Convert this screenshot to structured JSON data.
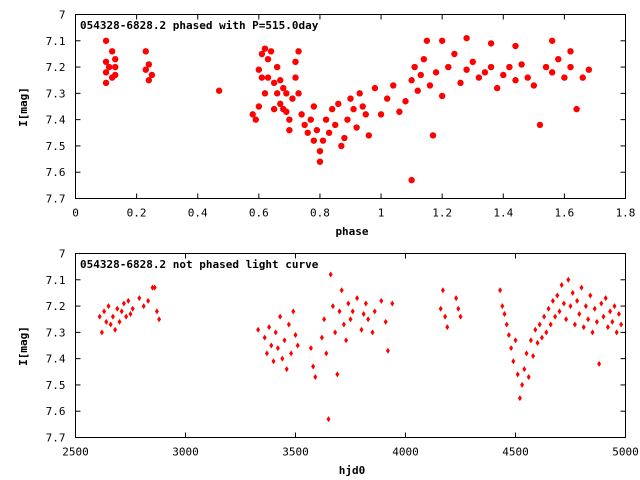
{
  "chart_data": [
    {
      "type": "scatter",
      "title": "054328-6828.2 phased with P=515.0day",
      "xlabel": "phase",
      "ylabel": "I[mag]",
      "xlim": [
        0,
        1.8
      ],
      "ylim": [
        7.7,
        7
      ],
      "x_ticks": [
        "0",
        "0.2",
        "0.4",
        "0.6",
        "0.8",
        "1",
        "1.2",
        "1.4",
        "1.6",
        "1.8"
      ],
      "y_ticks": [
        "7",
        "7.1",
        "7.2",
        "7.3",
        "7.4",
        "7.5",
        "7.6",
        "7.7"
      ],
      "marker_color": "#ff0000",
      "marker": "filled-circle-large",
      "series": [
        {
          "points": [
            [
              0.1,
              7.1
            ],
            [
              0.1,
              7.18
            ],
            [
              0.1,
              7.22
            ],
            [
              0.1,
              7.26
            ],
            [
              0.11,
              7.2
            ],
            [
              0.12,
              7.14
            ],
            [
              0.12,
              7.24
            ],
            [
              0.13,
              7.17
            ],
            [
              0.13,
              7.23
            ],
            [
              0.13,
              7.2
            ],
            [
              0.23,
              7.14
            ],
            [
              0.23,
              7.21
            ],
            [
              0.24,
              7.19
            ],
            [
              0.24,
              7.25
            ],
            [
              0.25,
              7.23
            ],
            [
              0.47,
              7.29
            ],
            [
              0.58,
              7.38
            ],
            [
              0.59,
              7.4
            ],
            [
              0.6,
              7.35
            ],
            [
              0.6,
              7.21
            ],
            [
              0.61,
              7.15
            ],
            [
              0.61,
              7.24
            ],
            [
              0.62,
              7.13
            ],
            [
              0.62,
              7.3
            ],
            [
              0.63,
              7.17
            ],
            [
              0.63,
              7.24
            ],
            [
              0.64,
              7.14
            ],
            [
              0.65,
              7.26
            ],
            [
              0.65,
              7.36
            ],
            [
              0.66,
              7.2
            ],
            [
              0.66,
              7.3
            ],
            [
              0.67,
              7.25
            ],
            [
              0.67,
              7.34
            ],
            [
              0.68,
              7.28
            ],
            [
              0.68,
              7.36
            ],
            [
              0.69,
              7.37
            ],
            [
              0.69,
              7.3
            ],
            [
              0.7,
              7.4
            ],
            [
              0.7,
              7.44
            ],
            [
              0.71,
              7.32
            ],
            [
              0.72,
              7.18
            ],
            [
              0.72,
              7.24
            ],
            [
              0.73,
              7.14
            ],
            [
              0.73,
              7.3
            ],
            [
              0.74,
              7.38
            ],
            [
              0.75,
              7.42
            ],
            [
              0.76,
              7.45
            ],
            [
              0.77,
              7.4
            ],
            [
              0.78,
              7.35
            ],
            [
              0.78,
              7.48
            ],
            [
              0.79,
              7.44
            ],
            [
              0.8,
              7.52
            ],
            [
              0.8,
              7.56
            ],
            [
              0.81,
              7.48
            ],
            [
              0.82,
              7.4
            ],
            [
              0.83,
              7.45
            ],
            [
              0.84,
              7.36
            ],
            [
              0.85,
              7.42
            ],
            [
              0.86,
              7.34
            ],
            [
              0.87,
              7.5
            ],
            [
              0.88,
              7.47
            ],
            [
              0.89,
              7.4
            ],
            [
              0.9,
              7.32
            ],
            [
              0.91,
              7.36
            ],
            [
              0.92,
              7.43
            ],
            [
              0.93,
              7.3
            ],
            [
              0.94,
              7.35
            ],
            [
              0.95,
              7.38
            ],
            [
              0.96,
              7.46
            ],
            [
              0.98,
              7.28
            ],
            [
              1.0,
              7.38
            ],
            [
              1.02,
              7.32
            ],
            [
              1.04,
              7.27
            ],
            [
              1.06,
              7.37
            ],
            [
              1.08,
              7.33
            ],
            [
              1.1,
              7.25
            ],
            [
              1.1,
              7.63
            ],
            [
              1.11,
              7.2
            ],
            [
              1.12,
              7.29
            ],
            [
              1.13,
              7.23
            ],
            [
              1.14,
              7.17
            ],
            [
              1.16,
              7.27
            ],
            [
              1.17,
              7.46
            ],
            [
              1.18,
              7.22
            ],
            [
              1.2,
              7.31
            ],
            [
              1.22,
              7.2
            ],
            [
              1.24,
              7.15
            ],
            [
              1.26,
              7.26
            ],
            [
              1.28,
              7.21
            ],
            [
              1.3,
              7.18
            ],
            [
              1.32,
              7.24
            ],
            [
              1.34,
              7.22
            ],
            [
              1.36,
              7.2
            ],
            [
              1.38,
              7.28
            ],
            [
              1.4,
              7.23
            ],
            [
              1.42,
              7.2
            ],
            [
              1.44,
              7.25
            ],
            [
              1.46,
              7.19
            ],
            [
              1.48,
              7.24
            ],
            [
              1.5,
              7.27
            ],
            [
              1.52,
              7.42
            ],
            [
              1.54,
              7.2
            ],
            [
              1.56,
              7.22
            ],
            [
              1.58,
              7.17
            ],
            [
              1.6,
              7.24
            ],
            [
              1.62,
              7.2
            ],
            [
              1.64,
              7.36
            ],
            [
              1.66,
              7.24
            ],
            [
              1.68,
              7.21
            ],
            [
              1.2,
              7.1
            ],
            [
              1.28,
              7.09
            ],
            [
              1.36,
              7.11
            ],
            [
              1.44,
              7.12
            ],
            [
              1.56,
              7.1
            ],
            [
              1.62,
              7.14
            ],
            [
              1.15,
              7.1
            ]
          ]
        }
      ]
    },
    {
      "type": "scatter",
      "title": "054328-6828.2 not phased light curve",
      "xlabel": "hjd0",
      "ylabel": "I[mag]",
      "xlim": [
        2500,
        5000
      ],
      "ylim": [
        7.7,
        7
      ],
      "x_ticks": [
        "2500",
        "3000",
        "3500",
        "4000",
        "4500",
        "5000"
      ],
      "y_ticks": [
        "7",
        "7.1",
        "7.2",
        "7.3",
        "7.4",
        "7.5",
        "7.6",
        "7.7"
      ],
      "marker_color": "#ff0000",
      "marker": "filled-diamond-small",
      "series": [
        {
          "points": [
            [
              2610,
              7.24
            ],
            [
              2620,
              7.3
            ],
            [
              2630,
              7.22
            ],
            [
              2640,
              7.26
            ],
            [
              2650,
              7.2
            ],
            [
              2660,
              7.27
            ],
            [
              2670,
              7.24
            ],
            [
              2680,
              7.29
            ],
            [
              2690,
              7.21
            ],
            [
              2700,
              7.26
            ],
            [
              2710,
              7.22
            ],
            [
              2720,
              7.19
            ],
            [
              2730,
              7.24
            ],
            [
              2740,
              7.18
            ],
            [
              2750,
              7.23
            ],
            [
              2760,
              7.21
            ],
            [
              2790,
              7.17
            ],
            [
              2810,
              7.2
            ],
            [
              2830,
              7.18
            ],
            [
              2850,
              7.13
            ],
            [
              2860,
              7.13
            ],
            [
              2870,
              7.22
            ],
            [
              2880,
              7.25
            ],
            [
              3330,
              7.29
            ],
            [
              3360,
              7.32
            ],
            [
              3370,
              7.38
            ],
            [
              3380,
              7.28
            ],
            [
              3390,
              7.35
            ],
            [
              3400,
              7.41
            ],
            [
              3410,
              7.3
            ],
            [
              3420,
              7.36
            ],
            [
              3430,
              7.24
            ],
            [
              3440,
              7.4
            ],
            [
              3450,
              7.33
            ],
            [
              3460,
              7.44
            ],
            [
              3470,
              7.27
            ],
            [
              3480,
              7.38
            ],
            [
              3490,
              7.22
            ],
            [
              3500,
              7.31
            ],
            [
              3510,
              7.35
            ],
            [
              3570,
              7.36
            ],
            [
              3580,
              7.43
            ],
            [
              3590,
              7.47
            ],
            [
              3620,
              7.32
            ],
            [
              3630,
              7.25
            ],
            [
              3640,
              7.38
            ],
            [
              3650,
              7.63
            ],
            [
              3660,
              7.08
            ],
            [
              3670,
              7.2
            ],
            [
              3680,
              7.3
            ],
            [
              3690,
              7.46
            ],
            [
              3700,
              7.22
            ],
            [
              3710,
              7.14
            ],
            [
              3720,
              7.27
            ],
            [
              3730,
              7.33
            ],
            [
              3740,
              7.19
            ],
            [
              3750,
              7.25
            ],
            [
              3760,
              7.22
            ],
            [
              3780,
              7.17
            ],
            [
              3800,
              7.29
            ],
            [
              3810,
              7.23
            ],
            [
              3820,
              7.19
            ],
            [
              3830,
              7.25
            ],
            [
              3850,
              7.3
            ],
            [
              3860,
              7.22
            ],
            [
              3890,
              7.18
            ],
            [
              3910,
              7.26
            ],
            [
              3920,
              7.37
            ],
            [
              3940,
              7.19
            ],
            [
              4160,
              7.21
            ],
            [
              4170,
              7.14
            ],
            [
              4180,
              7.24
            ],
            [
              4190,
              7.28
            ],
            [
              4230,
              7.17
            ],
            [
              4240,
              7.21
            ],
            [
              4250,
              7.24
            ],
            [
              4430,
              7.14
            ],
            [
              4440,
              7.2
            ],
            [
              4450,
              7.23
            ],
            [
              4460,
              7.27
            ],
            [
              4470,
              7.31
            ],
            [
              4480,
              7.36
            ],
            [
              4490,
              7.41
            ],
            [
              4500,
              7.33
            ],
            [
              4510,
              7.46
            ],
            [
              4520,
              7.55
            ],
            [
              4530,
              7.5
            ],
            [
              4540,
              7.44
            ],
            [
              4550,
              7.38
            ],
            [
              4560,
              7.47
            ],
            [
              4570,
              7.33
            ],
            [
              4580,
              7.39
            ],
            [
              4590,
              7.29
            ],
            [
              4600,
              7.34
            ],
            [
              4610,
              7.27
            ],
            [
              4620,
              7.32
            ],
            [
              4630,
              7.24
            ],
            [
              4640,
              7.3
            ],
            [
              4650,
              7.21
            ],
            [
              4660,
              7.27
            ],
            [
              4670,
              7.18
            ],
            [
              4680,
              7.24
            ],
            [
              4690,
              7.16
            ],
            [
              4700,
              7.22
            ],
            [
              4710,
              7.12
            ],
            [
              4720,
              7.19
            ],
            [
              4730,
              7.25
            ],
            [
              4740,
              7.1
            ],
            [
              4750,
              7.2
            ],
            [
              4760,
              7.15
            ],
            [
              4770,
              7.27
            ],
            [
              4780,
              7.18
            ],
            [
              4790,
              7.23
            ],
            [
              4800,
              7.13
            ],
            [
              4810,
              7.28
            ],
            [
              4820,
              7.2
            ],
            [
              4830,
              7.25
            ],
            [
              4840,
              7.16
            ],
            [
              4850,
              7.3
            ],
            [
              4860,
              7.21
            ],
            [
              4870,
              7.26
            ],
            [
              4880,
              7.42
            ],
            [
              4890,
              7.19
            ],
            [
              4900,
              7.24
            ],
            [
              4910,
              7.17
            ],
            [
              4920,
              7.28
            ],
            [
              4930,
              7.22
            ],
            [
              4940,
              7.26
            ],
            [
              4950,
              7.2
            ],
            [
              4960,
              7.3
            ],
            [
              4970,
              7.23
            ],
            [
              4980,
              7.27
            ]
          ]
        }
      ]
    }
  ]
}
